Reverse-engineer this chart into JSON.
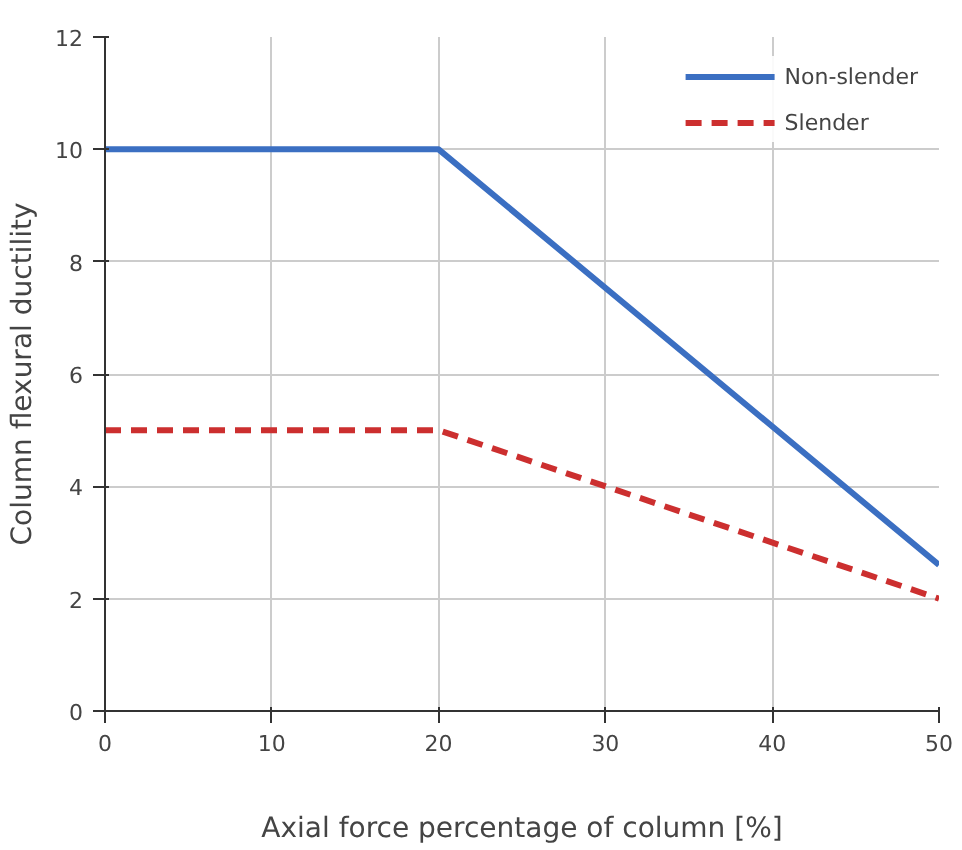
{
  "chart_data": {
    "type": "line",
    "xlabel": "Axial force percentage of column [%]",
    "ylabel": "Column flexural ductility",
    "x": [
      0,
      20,
      50
    ],
    "series": [
      {
        "name": "Non-slender",
        "color": "#3b6fc2",
        "values": [
          10,
          10,
          2.6
        ],
        "line_style": "solid"
      },
      {
        "name": "Slender",
        "color": "#cc2f2f",
        "values": [
          5,
          5,
          2
        ],
        "line_style": "dashed"
      }
    ],
    "xlim": [
      0,
      50
    ],
    "xticks": [
      0,
      10,
      20,
      30,
      40,
      50
    ],
    "ylim": [
      0,
      12
    ],
    "yticks": [
      0,
      2,
      4,
      6,
      8,
      10,
      12
    ],
    "grid": true,
    "legend": "top right",
    "marker": "none"
  }
}
